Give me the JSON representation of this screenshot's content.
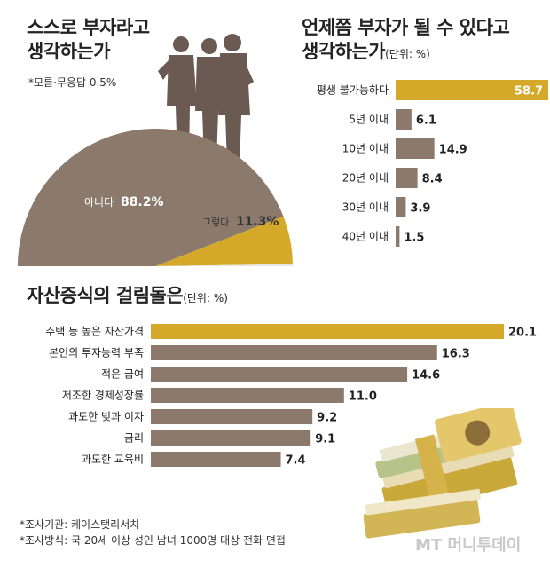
{
  "colors": {
    "gold": "#d4a92a",
    "brown": "#8b796c",
    "dark": "#2b2b2b"
  },
  "pie": {
    "title_line1": "스스로 부자라고",
    "title_line2": "생각하는가",
    "note": "*모름·무응답 0.5%",
    "no_label": "아니다",
    "no_value": "88.2%",
    "yes_label": "그렇다",
    "yes_value": "11.3%"
  },
  "when": {
    "title_line1": "언제쯤 부자가 될 수 있다고",
    "title_line2": "생각하는가",
    "unit": "(단위: %)"
  },
  "obstacle": {
    "title": "자산증식의 걸림돌은",
    "unit": "(단위: %)"
  },
  "footer": {
    "line1": "*조사기관: 케이스탯리서치",
    "line2": "*조사방식: 국 20세 이상 성인 남녀 1000명 대상 전화 면접"
  },
  "watermark": "MT 머니투데이",
  "chart_data": [
    {
      "type": "pie",
      "title": "스스로 부자라고 생각하는가",
      "categories": [
        "아니다",
        "그렇다",
        "모름·무응답"
      ],
      "values": [
        88.2,
        11.3,
        0.5
      ]
    },
    {
      "type": "bar",
      "title": "언제쯤 부자가 될 수 있다고 생각하는가",
      "categories": [
        "평생 불가능하다",
        "5년 이내",
        "10년 이내",
        "20년 이내",
        "30년 이내",
        "40년 이내"
      ],
      "values": [
        58.7,
        6.1,
        14.9,
        8.4,
        3.9,
        1.5
      ],
      "labels": [
        "58.7",
        "6.1",
        "14.9",
        "8.4",
        "3.9",
        "1.5"
      ],
      "highlight_index": 0,
      "xlim": [
        0,
        58.7
      ]
    },
    {
      "type": "bar",
      "title": "자산증식의 걸림돌은",
      "categories": [
        "주택 등 높은 자산가격",
        "본인의 투자능력 부족",
        "적은 급여",
        "저조한 경제성장률",
        "과도한 빚과 이자",
        "금리",
        "과도한 교육비"
      ],
      "values": [
        20.1,
        16.3,
        14.6,
        11.0,
        9.2,
        9.1,
        7.4
      ],
      "labels": [
        "20.1",
        "16.3",
        "14.6",
        "11.0",
        "9.2",
        "9.1",
        "7.4"
      ],
      "highlight_index": 0,
      "xlim": [
        0,
        20.1
      ]
    }
  ]
}
